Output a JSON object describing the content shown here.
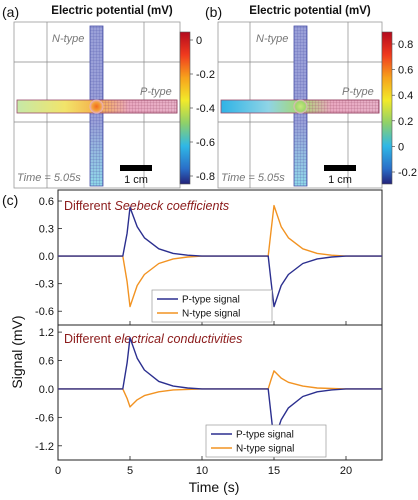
{
  "panels": {
    "a": {
      "letter": "(a)",
      "colorbar_title": "Electric potential (mV)",
      "n_label": "N-type",
      "p_label": "P-type",
      "time_label": "Time = 5.05s",
      "scale_label": "1 cm",
      "colorbar_ticks": [
        "0",
        "-0.2",
        "-0.4",
        "-0.6",
        "-0.8"
      ]
    },
    "b": {
      "letter": "(b)",
      "colorbar_title": "Electric potential (mV)",
      "n_label": "N-type",
      "p_label": "P-type",
      "time_label": "Time = 5.05s",
      "scale_label": "1 cm",
      "colorbar_ticks": [
        "0.8",
        "0.6",
        "0.4",
        "0.2",
        "0",
        "-0.2"
      ]
    },
    "c": {
      "letter": "(c)"
    }
  },
  "colors": {
    "p_type": "#2b2f8f",
    "n_type": "#f29322",
    "subtitle": "#8b1a1a",
    "grid_bar": "#7b82c8"
  },
  "chart_data": [
    {
      "type": "line",
      "subtitle_plain": "Different ",
      "subtitle_italic": "Seebeck coefficients",
      "ylim": [
        -0.75,
        0.72
      ],
      "yticks": [
        "0.6",
        "0.3",
        "0.0",
        "-0.3",
        "-0.6"
      ],
      "ytick_values": [
        0.6,
        0.3,
        0.0,
        -0.3,
        -0.6
      ],
      "legend_position": "bottom-center",
      "series": [
        {
          "name": "P-type signal",
          "x": [
            0,
            4.5,
            4.8,
            5.0,
            5.5,
            6,
            7,
            8,
            9,
            10,
            12,
            14.6,
            14.8,
            15.0,
            15.5,
            16,
            17,
            18,
            19,
            20,
            22.5
          ],
          "y": [
            0,
            0,
            0.25,
            0.53,
            0.32,
            0.2,
            0.08,
            0.03,
            0.01,
            0,
            0,
            0,
            -0.28,
            -0.55,
            -0.32,
            -0.2,
            -0.08,
            -0.03,
            -0.01,
            0,
            0
          ]
        },
        {
          "name": "N-type signal",
          "x": [
            0,
            4.5,
            4.8,
            5.0,
            5.5,
            6,
            7,
            8,
            9,
            10,
            12,
            14.6,
            14.8,
            15.0,
            15.5,
            16,
            17,
            18,
            19,
            20,
            22.5
          ],
          "y": [
            0,
            0,
            -0.28,
            -0.55,
            -0.32,
            -0.2,
            -0.08,
            -0.03,
            -0.01,
            0,
            0,
            0,
            0.28,
            0.55,
            0.32,
            0.2,
            0.08,
            0.03,
            0.01,
            0,
            0
          ]
        }
      ]
    },
    {
      "type": "line",
      "subtitle_plain": "Different ",
      "subtitle_italic": "electrical conductivities",
      "ylim": [
        -1.5,
        1.35
      ],
      "yticks": [
        "1.2",
        "0.6",
        "0.0",
        "-0.6",
        "-1.2"
      ],
      "ytick_values": [
        1.2,
        0.6,
        0.0,
        -0.6,
        -1.2
      ],
      "legend_position": "bottom-right",
      "series": [
        {
          "name": "P-type signal",
          "x": [
            0,
            4.5,
            4.8,
            5.0,
            5.5,
            6,
            7,
            8,
            9,
            10,
            12,
            14.6,
            14.8,
            15.0,
            15.5,
            16,
            17,
            18,
            19,
            20,
            22.5
          ],
          "y": [
            0,
            0,
            0.55,
            1.08,
            0.65,
            0.4,
            0.16,
            0.06,
            0.02,
            0,
            0,
            0,
            -0.55,
            -1.1,
            -0.65,
            -0.4,
            -0.16,
            -0.06,
            -0.02,
            0,
            0
          ]
        },
        {
          "name": "N-type signal",
          "x": [
            0,
            4.5,
            4.8,
            5.0,
            5.5,
            6,
            7,
            8,
            9,
            10,
            12,
            14.6,
            14.8,
            15.0,
            15.5,
            16,
            17,
            18,
            19,
            20,
            22.5
          ],
          "y": [
            0,
            0,
            -0.2,
            -0.38,
            -0.23,
            -0.14,
            -0.06,
            -0.02,
            -0.01,
            0,
            0,
            0,
            0.2,
            0.38,
            0.23,
            0.14,
            0.06,
            0.02,
            0.01,
            0,
            0
          ]
        }
      ]
    }
  ],
  "axes": {
    "xlabel": "Time (s)",
    "ylabel": "Signal (mV)",
    "xlim": [
      0,
      22.5
    ],
    "xticks": [
      "0",
      "5",
      "10",
      "15",
      "20"
    ],
    "xtick_values": [
      0,
      5,
      10,
      15,
      20
    ]
  }
}
